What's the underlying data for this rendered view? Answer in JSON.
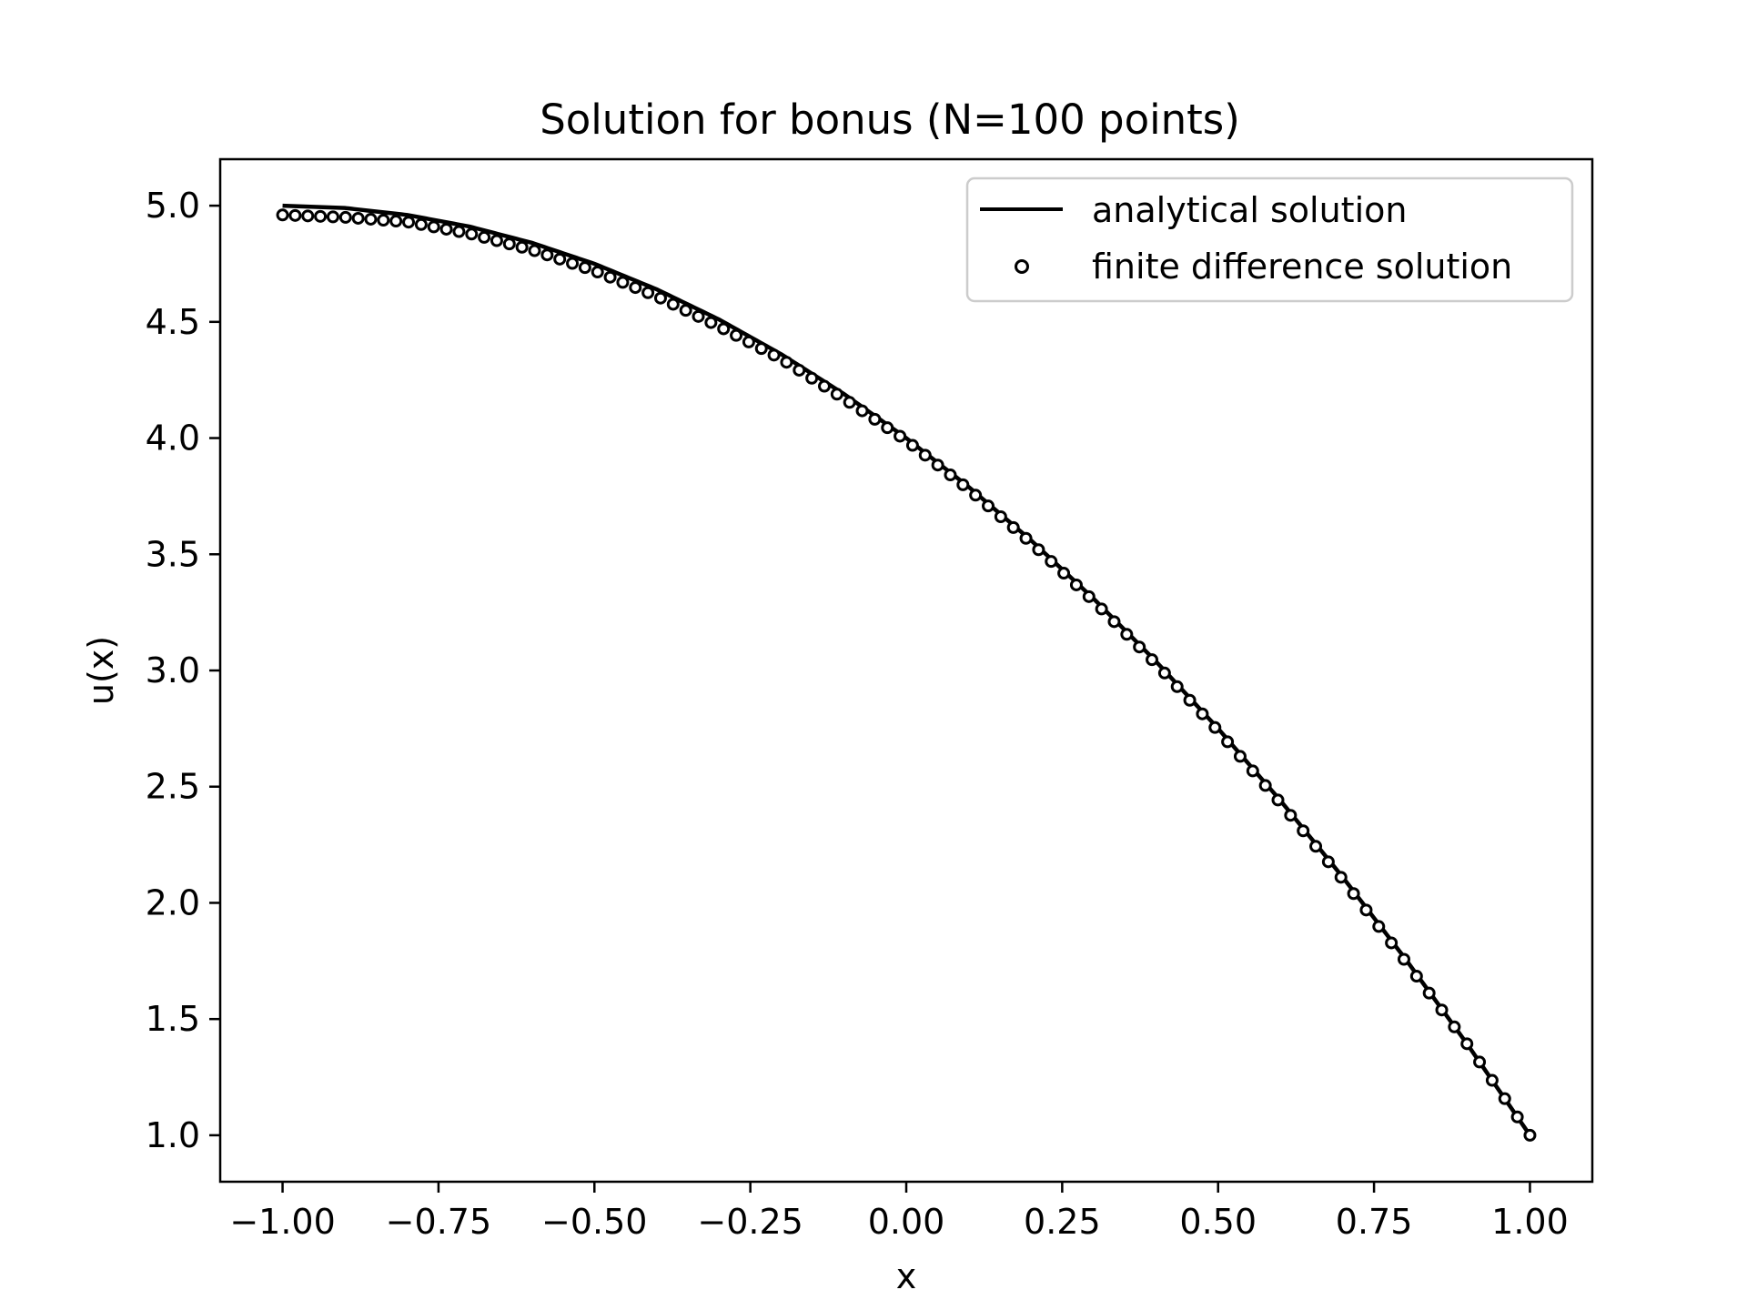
{
  "chart_data": {
    "type": "line",
    "title": "Solution for bonus (N=100 points)",
    "xlabel": "x",
    "ylabel": "u(x)",
    "xlim": [
      -1.1,
      1.1
    ],
    "ylim": [
      0.8,
      5.2
    ],
    "xticks": [
      -1.0,
      -0.75,
      -0.5,
      -0.25,
      0.0,
      0.25,
      0.5,
      0.75,
      1.0
    ],
    "xtick_labels": [
      "−1.00",
      "−0.75",
      "−0.50",
      "−0.25",
      "0.00",
      "0.25",
      "0.50",
      "0.75",
      "1.00"
    ],
    "yticks": [
      1.0,
      1.5,
      2.0,
      2.5,
      3.0,
      3.5,
      4.0,
      4.5,
      5.0
    ],
    "ytick_labels": [
      "1.0",
      "1.5",
      "2.0",
      "2.5",
      "3.0",
      "3.5",
      "4.0",
      "4.5",
      "5.0"
    ],
    "grid": false,
    "legend_position": "top-right",
    "series": [
      {
        "name": "analytical solution",
        "style": "line",
        "color": "#000000",
        "x": [
          -1.0,
          -0.9,
          -0.8,
          -0.7,
          -0.6,
          -0.5,
          -0.4,
          -0.3,
          -0.2,
          -0.1,
          0.0,
          0.1,
          0.2,
          0.3,
          0.4,
          0.5,
          0.6,
          0.7,
          0.8,
          0.9,
          1.0
        ],
        "y": [
          5.0,
          4.99,
          4.96,
          4.91,
          4.84,
          4.75,
          4.64,
          4.51,
          4.36,
          4.19,
          4.0,
          3.79,
          3.56,
          3.31,
          3.04,
          2.75,
          2.44,
          2.11,
          1.76,
          1.39,
          1.0
        ]
      },
      {
        "name": "finite difference solution",
        "style": "markers",
        "marker": "open-circle",
        "color": "#000000",
        "x": [
          -1.0,
          -0.9,
          -0.8,
          -0.7,
          -0.6,
          -0.5,
          -0.4,
          -0.3,
          -0.2,
          -0.1,
          0.0,
          0.1,
          0.2,
          0.3,
          0.4,
          0.5,
          0.6,
          0.7,
          0.8,
          0.9,
          1.0
        ],
        "y": [
          4.96,
          4.95,
          4.93,
          4.88,
          4.81,
          4.72,
          4.61,
          4.48,
          4.34,
          4.17,
          3.99,
          3.78,
          3.55,
          3.3,
          3.03,
          2.74,
          2.43,
          2.1,
          1.75,
          1.39,
          1.0
        ]
      }
    ]
  }
}
